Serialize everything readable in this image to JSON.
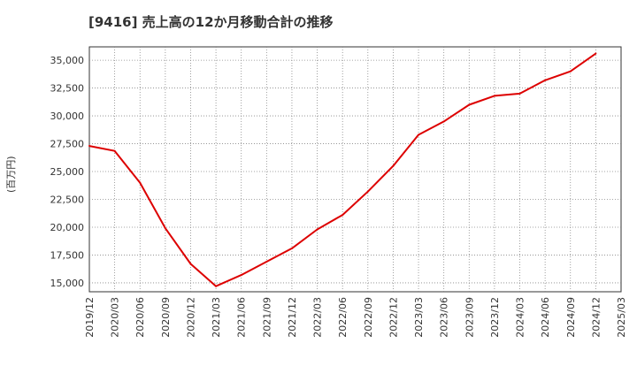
{
  "chart_data": {
    "type": "line",
    "title": "[9416]  売上高の12か月移動合計の推移",
    "ylabel": "(百万円)",
    "xlabel": "",
    "x_ticks": [
      "2019/12",
      "2020/03",
      "2020/06",
      "2020/09",
      "2020/12",
      "2021/03",
      "2021/06",
      "2021/09",
      "2021/12",
      "2022/03",
      "2022/06",
      "2022/09",
      "2022/12",
      "2023/03",
      "2023/06",
      "2023/09",
      "2023/12",
      "2024/03",
      "2024/06",
      "2024/09",
      "2024/12",
      "2025/03"
    ],
    "y_ticks": [
      15000,
      17500,
      20000,
      22500,
      25000,
      27500,
      30000,
      32500,
      35000
    ],
    "y_tick_labels": [
      "15,000",
      "17,500",
      "20,000",
      "22,500",
      "25,000",
      "27,500",
      "30,000",
      "32,500",
      "35,000"
    ],
    "ylim": [
      14200,
      36200
    ],
    "grid": true,
    "series": [
      {
        "name": "売上高の12か月移動合計",
        "color": "#dd0000",
        "x": [
          "2019/12",
          "2020/03",
          "2020/06",
          "2020/09",
          "2020/12",
          "2021/03",
          "2021/06",
          "2021/09",
          "2021/12",
          "2022/03",
          "2022/06",
          "2022/09",
          "2022/12",
          "2023/03",
          "2023/06",
          "2023/09",
          "2023/12",
          "2024/03",
          "2024/06",
          "2024/09",
          "2024/12"
        ],
        "values": [
          27300,
          26850,
          24000,
          19900,
          16700,
          14700,
          15700,
          16900,
          18100,
          19800,
          21100,
          23200,
          25500,
          28300,
          29500,
          31000,
          31800,
          32000,
          33200,
          34000,
          35600
        ]
      }
    ]
  }
}
